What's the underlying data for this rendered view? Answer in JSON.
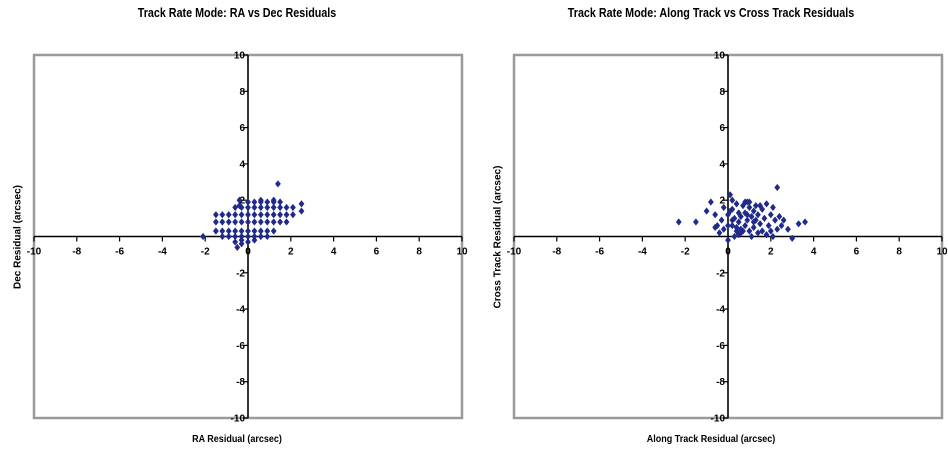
{
  "chart_data": [
    {
      "type": "scatter",
      "title": "Track Rate Mode: RA vs Dec Residuals",
      "xlabel": "RA Residual (arcsec)",
      "ylabel": "Dec Residual (arcsec)",
      "xlim": [
        -10,
        10
      ],
      "ylim": [
        -10,
        10
      ],
      "xticks": [
        -10,
        -8,
        -6,
        -4,
        -2,
        0,
        2,
        4,
        6,
        8,
        10
      ],
      "yticks": [
        -10,
        -8,
        -6,
        -4,
        -2,
        0,
        2,
        4,
        6,
        8,
        10
      ],
      "tick_labels": [
        "-10",
        "-8",
        "-6",
        "-4",
        "-2",
        "0",
        "2",
        "4",
        "6",
        "8",
        "10"
      ],
      "grid": false,
      "marker_color": "#1f2a8c",
      "frame_color": "#9a9a9a",
      "series": [
        {
          "x": [
            -2.1,
            -1.5,
            -1.5,
            -1.5,
            -1.2,
            -1.2,
            -1.2,
            -1.2,
            -0.9,
            -0.9,
            -0.9,
            -0.9,
            -0.6,
            -0.6,
            -0.6,
            -0.6,
            -0.6,
            -0.6,
            -0.3,
            -0.3,
            -0.3,
            -0.3,
            -0.3,
            -0.3,
            -0.3,
            0.0,
            0.0,
            0.0,
            0.0,
            0.0,
            0.0,
            0.0,
            0.3,
            0.3,
            0.3,
            0.3,
            0.3,
            0.3,
            0.3,
            0.6,
            0.6,
            0.6,
            0.6,
            0.6,
            0.6,
            0.6,
            0.9,
            0.9,
            0.9,
            0.9,
            0.9,
            0.9,
            1.2,
            1.2,
            1.2,
            1.2,
            1.2,
            1.2,
            1.5,
            1.5,
            1.5,
            1.5,
            1.8,
            1.8,
            1.8,
            2.1,
            2.1,
            2.5,
            2.5,
            1.4,
            -0.5,
            -0.4,
            -0.4
          ],
          "y": [
            0.0,
            0.3,
            0.8,
            1.2,
            0.3,
            0.8,
            1.2,
            0.0,
            0.3,
            0.8,
            1.2,
            0.0,
            0.0,
            0.3,
            0.8,
            1.2,
            1.6,
            -0.3,
            0.0,
            0.3,
            0.8,
            1.2,
            1.6,
            -0.2,
            -0.4,
            0.0,
            0.3,
            0.8,
            1.2,
            1.6,
            1.9,
            -0.3,
            0.0,
            0.3,
            0.8,
            1.2,
            1.6,
            1.9,
            -0.2,
            0.0,
            0.3,
            0.8,
            1.2,
            1.6,
            1.9,
            2.0,
            0.3,
            0.8,
            1.2,
            1.6,
            1.9,
            0.0,
            0.3,
            0.8,
            1.2,
            1.6,
            1.9,
            2.0,
            0.8,
            1.2,
            1.6,
            1.9,
            0.8,
            1.2,
            1.6,
            1.2,
            1.6,
            1.4,
            1.8,
            2.9,
            -0.6,
            1.7,
            2.0
          ]
        }
      ]
    },
    {
      "type": "scatter",
      "title": "Track Rate Mode: Along Track vs Cross Track Residuals",
      "xlabel": "Along Track Residual (arcsec)",
      "ylabel": "Cross Track Residual (arcsec)",
      "xlim": [
        -10,
        10
      ],
      "ylim": [
        -10,
        10
      ],
      "xticks": [
        -10,
        -8,
        -6,
        -4,
        -2,
        0,
        2,
        4,
        6,
        8,
        10
      ],
      "yticks": [
        -10,
        -8,
        -6,
        -4,
        -2,
        0,
        2,
        4,
        6,
        8,
        10
      ],
      "tick_labels": [
        "-10",
        "-8",
        "-6",
        "-4",
        "-2",
        "0",
        "2",
        "4",
        "6",
        "8",
        "10"
      ],
      "grid": false,
      "marker_color": "#1f2a8c",
      "frame_color": "#9a9a9a",
      "series": [
        {
          "x": [
            -2.3,
            -1.5,
            -1.0,
            -0.8,
            -0.6,
            -0.6,
            -0.4,
            -0.3,
            -0.2,
            -0.2,
            0.0,
            0.0,
            0.1,
            0.2,
            0.2,
            0.3,
            0.4,
            0.4,
            0.5,
            0.5,
            0.6,
            0.6,
            0.7,
            0.8,
            0.8,
            0.9,
            1.0,
            1.0,
            1.1,
            1.2,
            1.2,
            1.3,
            1.4,
            1.4,
            1.5,
            1.6,
            1.6,
            1.7,
            1.8,
            1.9,
            2.0,
            2.0,
            2.1,
            2.2,
            2.3,
            2.4,
            2.5,
            2.6,
            2.8,
            3.0,
            3.3,
            3.6,
            0.3,
            0.6,
            0.9,
            1.1,
            1.3,
            0.0,
            0.2,
            0.5,
            0.8,
            1.5,
            1.8,
            2.1,
            -0.5,
            0.1,
            0.4,
            0.7,
            1.0,
            1.2,
            0.9,
            2.3,
            0.2
          ],
          "y": [
            0.8,
            0.8,
            1.4,
            1.9,
            0.5,
            1.2,
            0.2,
            0.9,
            1.6,
            0.4,
            1.2,
            -0.2,
            2.3,
            0.6,
            1.5,
            1.0,
            0.3,
            1.8,
            0.8,
            1.3,
            0.2,
            1.1,
            1.7,
            0.6,
            1.3,
            0.9,
            0.3,
            1.6,
            1.1,
            0.5,
            1.4,
            0.9,
            0.2,
            1.2,
            0.7,
            1.5,
            0.3,
            1.0,
            1.8,
            0.6,
            1.2,
            0.3,
            1.6,
            0.9,
            0.4,
            1.1,
            0.6,
            0.9,
            0.4,
            -0.1,
            0.7,
            0.8,
            0.0,
            0.4,
            1.9,
            0.0,
            1.7,
            0.6,
            0.9,
            0.1,
            1.9,
            1.7,
            0.1,
            0.0,
            0.6,
            1.4,
            0.5,
            0.3,
            1.9,
            0.8,
            1.2,
            2.7,
            2.0
          ]
        }
      ]
    }
  ]
}
